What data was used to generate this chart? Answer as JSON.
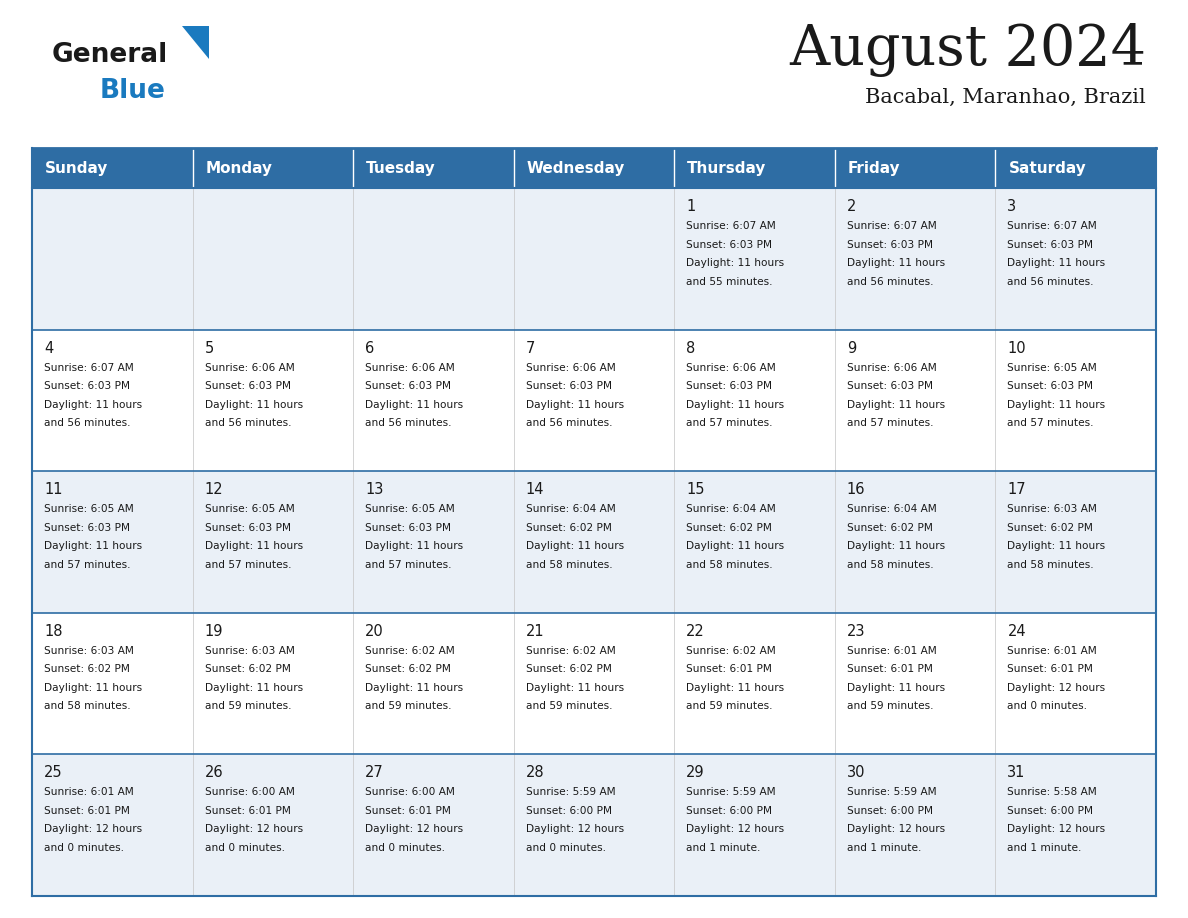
{
  "title": "August 2024",
  "subtitle": "Bacabal, Maranhao, Brazil",
  "header_bg": "#2e6da4",
  "header_text": "#ffffff",
  "days_of_week": [
    "Sunday",
    "Monday",
    "Tuesday",
    "Wednesday",
    "Thursday",
    "Friday",
    "Saturday"
  ],
  "row_bg_odd": "#eaf0f7",
  "row_bg_even": "#ffffff",
  "cell_border_color": "#2e6da4",
  "logo_general_color": "#1a1a1a",
  "logo_blue_color": "#1a7abf",
  "logo_triangle_color": "#1a7abf",
  "title_color": "#1a1a1a",
  "subtitle_color": "#1a1a1a",
  "day_num_color": "#1a1a1a",
  "info_text_color": "#1a1a1a",
  "calendar": [
    [
      {
        "day": "",
        "info": ""
      },
      {
        "day": "",
        "info": ""
      },
      {
        "day": "",
        "info": ""
      },
      {
        "day": "",
        "info": ""
      },
      {
        "day": "1",
        "info": "Sunrise: 6:07 AM\nSunset: 6:03 PM\nDaylight: 11 hours\nand 55 minutes."
      },
      {
        "day": "2",
        "info": "Sunrise: 6:07 AM\nSunset: 6:03 PM\nDaylight: 11 hours\nand 56 minutes."
      },
      {
        "day": "3",
        "info": "Sunrise: 6:07 AM\nSunset: 6:03 PM\nDaylight: 11 hours\nand 56 minutes."
      }
    ],
    [
      {
        "day": "4",
        "info": "Sunrise: 6:07 AM\nSunset: 6:03 PM\nDaylight: 11 hours\nand 56 minutes."
      },
      {
        "day": "5",
        "info": "Sunrise: 6:06 AM\nSunset: 6:03 PM\nDaylight: 11 hours\nand 56 minutes."
      },
      {
        "day": "6",
        "info": "Sunrise: 6:06 AM\nSunset: 6:03 PM\nDaylight: 11 hours\nand 56 minutes."
      },
      {
        "day": "7",
        "info": "Sunrise: 6:06 AM\nSunset: 6:03 PM\nDaylight: 11 hours\nand 56 minutes."
      },
      {
        "day": "8",
        "info": "Sunrise: 6:06 AM\nSunset: 6:03 PM\nDaylight: 11 hours\nand 57 minutes."
      },
      {
        "day": "9",
        "info": "Sunrise: 6:06 AM\nSunset: 6:03 PM\nDaylight: 11 hours\nand 57 minutes."
      },
      {
        "day": "10",
        "info": "Sunrise: 6:05 AM\nSunset: 6:03 PM\nDaylight: 11 hours\nand 57 minutes."
      }
    ],
    [
      {
        "day": "11",
        "info": "Sunrise: 6:05 AM\nSunset: 6:03 PM\nDaylight: 11 hours\nand 57 minutes."
      },
      {
        "day": "12",
        "info": "Sunrise: 6:05 AM\nSunset: 6:03 PM\nDaylight: 11 hours\nand 57 minutes."
      },
      {
        "day": "13",
        "info": "Sunrise: 6:05 AM\nSunset: 6:03 PM\nDaylight: 11 hours\nand 57 minutes."
      },
      {
        "day": "14",
        "info": "Sunrise: 6:04 AM\nSunset: 6:02 PM\nDaylight: 11 hours\nand 58 minutes."
      },
      {
        "day": "15",
        "info": "Sunrise: 6:04 AM\nSunset: 6:02 PM\nDaylight: 11 hours\nand 58 minutes."
      },
      {
        "day": "16",
        "info": "Sunrise: 6:04 AM\nSunset: 6:02 PM\nDaylight: 11 hours\nand 58 minutes."
      },
      {
        "day": "17",
        "info": "Sunrise: 6:03 AM\nSunset: 6:02 PM\nDaylight: 11 hours\nand 58 minutes."
      }
    ],
    [
      {
        "day": "18",
        "info": "Sunrise: 6:03 AM\nSunset: 6:02 PM\nDaylight: 11 hours\nand 58 minutes."
      },
      {
        "day": "19",
        "info": "Sunrise: 6:03 AM\nSunset: 6:02 PM\nDaylight: 11 hours\nand 59 minutes."
      },
      {
        "day": "20",
        "info": "Sunrise: 6:02 AM\nSunset: 6:02 PM\nDaylight: 11 hours\nand 59 minutes."
      },
      {
        "day": "21",
        "info": "Sunrise: 6:02 AM\nSunset: 6:02 PM\nDaylight: 11 hours\nand 59 minutes."
      },
      {
        "day": "22",
        "info": "Sunrise: 6:02 AM\nSunset: 6:01 PM\nDaylight: 11 hours\nand 59 minutes."
      },
      {
        "day": "23",
        "info": "Sunrise: 6:01 AM\nSunset: 6:01 PM\nDaylight: 11 hours\nand 59 minutes."
      },
      {
        "day": "24",
        "info": "Sunrise: 6:01 AM\nSunset: 6:01 PM\nDaylight: 12 hours\nand 0 minutes."
      }
    ],
    [
      {
        "day": "25",
        "info": "Sunrise: 6:01 AM\nSunset: 6:01 PM\nDaylight: 12 hours\nand 0 minutes."
      },
      {
        "day": "26",
        "info": "Sunrise: 6:00 AM\nSunset: 6:01 PM\nDaylight: 12 hours\nand 0 minutes."
      },
      {
        "day": "27",
        "info": "Sunrise: 6:00 AM\nSunset: 6:01 PM\nDaylight: 12 hours\nand 0 minutes."
      },
      {
        "day": "28",
        "info": "Sunrise: 5:59 AM\nSunset: 6:00 PM\nDaylight: 12 hours\nand 0 minutes."
      },
      {
        "day": "29",
        "info": "Sunrise: 5:59 AM\nSunset: 6:00 PM\nDaylight: 12 hours\nand 1 minute."
      },
      {
        "day": "30",
        "info": "Sunrise: 5:59 AM\nSunset: 6:00 PM\nDaylight: 12 hours\nand 1 minute."
      },
      {
        "day": "31",
        "info": "Sunrise: 5:58 AM\nSunset: 6:00 PM\nDaylight: 12 hours\nand 1 minute."
      }
    ]
  ]
}
